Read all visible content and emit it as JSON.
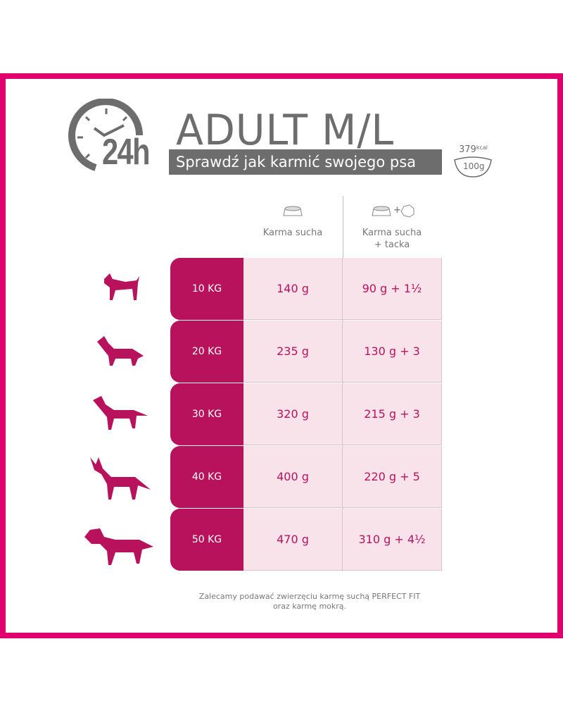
{
  "header": {
    "badge": "24h",
    "title": "ADULT M/L",
    "subtitle": "Sprawdź jak karmić swojego psa",
    "kcal_value": "379",
    "kcal_unit": "kcal",
    "kcal_per": "100g"
  },
  "columns": [
    {
      "label": "Karma sucha",
      "icon": "dry-food-bowl-icon"
    },
    {
      "label": "Karma sucha",
      "label2": "+ tacka",
      "icon": "bowl-plus-tray-icon"
    }
  ],
  "rows": [
    {
      "weight": "10 KG",
      "dry": "140 g",
      "mixed": "90 g + 1½"
    },
    {
      "weight": "20 KG",
      "dry": "235 g",
      "mixed": "130 g + 3"
    },
    {
      "weight": "30 KG",
      "dry": "320 g",
      "mixed": "215 g + 3"
    },
    {
      "weight": "40 KG",
      "dry": "400 g",
      "mixed": "220 g + 5"
    },
    {
      "weight": "50 KG",
      "dry": "470 g",
      "mixed": "310 g + 4½"
    }
  ],
  "note": {
    "line1": "Zalecamy podawać zwierzęciu karmę suchą PERFECT FIT",
    "line2": "oraz karmę mokrą."
  },
  "colors": {
    "frame": "#e0006e",
    "accent": "#b7125b",
    "cell": "#f8e3eb",
    "gray": "#6d6d6d"
  }
}
